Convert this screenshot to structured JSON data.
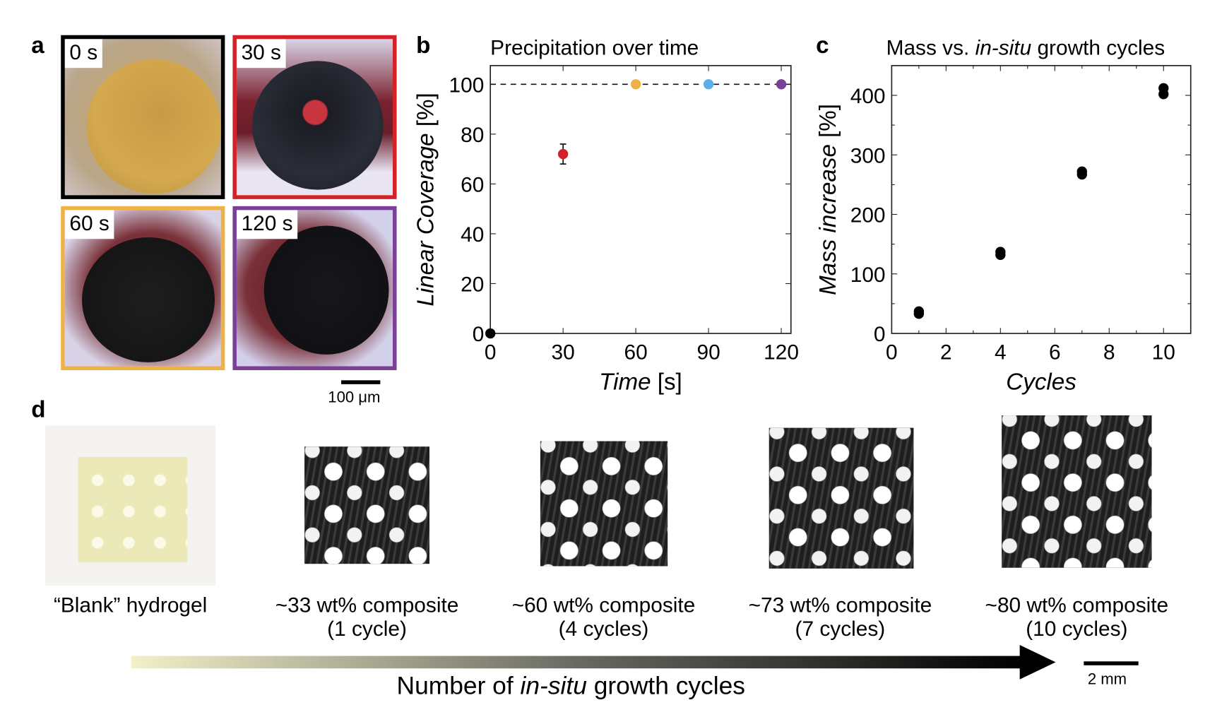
{
  "panel_labels": {
    "a": "a",
    "b": "b",
    "c": "c",
    "d": "d"
  },
  "panel_a": {
    "frames": [
      {
        "label": "0 s",
        "color": "#000000"
      },
      {
        "label": "30 s",
        "color": "#d42027"
      },
      {
        "label": "60 s",
        "color": "#eeb145"
      },
      {
        "label": "120 s",
        "color": "#7b3f98"
      }
    ],
    "scale_bar": "100 μm"
  },
  "chart_data": [
    {
      "type": "scatter",
      "title": "Precipitation over time",
      "xlabel_italic": "Time",
      "xlabel_unit": " [s]",
      "ylabel_italic": "Linear Coverage",
      "ylabel_unit": " [%]",
      "xlim": [
        0,
        124
      ],
      "ylim": [
        0,
        107.5
      ],
      "xticks": [
        0,
        30,
        60,
        90,
        120
      ],
      "yticks": [
        0,
        20,
        40,
        60,
        80,
        100
      ],
      "reference_line": {
        "y": 100,
        "style": "dashed"
      },
      "points": [
        {
          "x": 0,
          "y": 0,
          "color": "#000000"
        },
        {
          "x": 30,
          "y": 72,
          "err": 4,
          "color": "#d42027"
        },
        {
          "x": 60,
          "y": 100,
          "color": "#eeb145"
        },
        {
          "x": 90,
          "y": 100,
          "color": "#5aaeea"
        },
        {
          "x": 120,
          "y": 100,
          "color": "#7b3f98"
        }
      ],
      "grid": false
    },
    {
      "type": "scatter",
      "title_pre": "Mass vs. ",
      "title_italic": "in-situ",
      "title_post": " growth cycles",
      "xlabel_italic": "Cycles",
      "ylabel_italic": "Mass increase",
      "ylabel_unit": " [%]",
      "xlim": [
        0,
        11
      ],
      "ylim": [
        0,
        450
      ],
      "xticks": [
        0,
        2,
        4,
        6,
        8,
        10
      ],
      "yticks": [
        0,
        100,
        200,
        300,
        400
      ],
      "points": [
        {
          "x": 1,
          "y": 33
        },
        {
          "x": 1,
          "y": 37
        },
        {
          "x": 4,
          "y": 132
        },
        {
          "x": 4,
          "y": 137
        },
        {
          "x": 7,
          "y": 267
        },
        {
          "x": 7,
          "y": 272
        },
        {
          "x": 10,
          "y": 402
        },
        {
          "x": 10,
          "y": 412
        }
      ],
      "color": "#000000",
      "grid": false
    }
  ],
  "panel_d": {
    "samples": [
      {
        "line1": "“Blank” hydrogel",
        "line2": ""
      },
      {
        "line1": "~33 wt% composite",
        "line2": "(1 cycle)"
      },
      {
        "line1": "~60 wt% composite",
        "line2": "(4 cycles)"
      },
      {
        "line1": "~73 wt% composite",
        "line2": "(7 cycles)"
      },
      {
        "line1": "~80 wt% composite",
        "line2": "(10 cycles)"
      }
    ],
    "arrow_label_pre": "Number of ",
    "arrow_label_italic": "in-situ",
    "arrow_label_post": " growth cycles",
    "scale_bar": "2 mm"
  }
}
